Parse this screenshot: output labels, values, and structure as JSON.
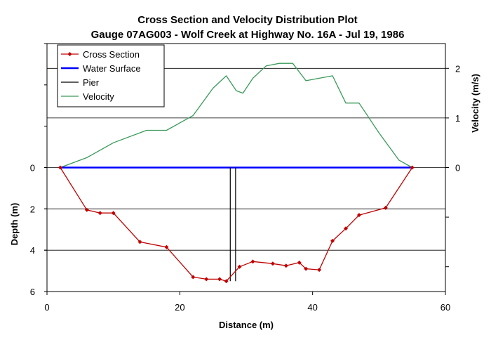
{
  "chart_data": {
    "type": "line",
    "title": "Cross Section and Velocity Distribution Plot",
    "subtitle": "Gauge 07AG003 - Wolf Creek at Highway No. 16A - Jul 19, 1986",
    "xlabel": "Distance (m)",
    "ylabel": "Depth (m)",
    "y2label": "Velocity (m/s)",
    "xlim": [
      0,
      60
    ],
    "ylim_depth": [
      6,
      -6
    ],
    "ylim_velocity": [
      -2.5,
      2.5
    ],
    "x_ticks": [
      "0",
      "20",
      "40",
      "60"
    ],
    "depth_ticks": [
      "0",
      "2",
      "4",
      "6"
    ],
    "velocity_ticks": [
      "0",
      "1",
      "2"
    ],
    "grid": true,
    "legend_position": "top-left",
    "series": [
      {
        "name": "Cross Section",
        "axis": "depth",
        "color": "#c00000",
        "marker": "diamond",
        "x": [
          2,
          6,
          8,
          10,
          14,
          18,
          22,
          24,
          26,
          27,
          29,
          31,
          34,
          36,
          38,
          39,
          41,
          43,
          45,
          47,
          51,
          55
        ],
        "y": [
          0,
          2.05,
          2.2,
          2.2,
          3.6,
          3.85,
          5.3,
          5.4,
          5.4,
          5.5,
          4.8,
          4.55,
          4.65,
          4.75,
          4.6,
          4.9,
          4.95,
          3.55,
          2.95,
          2.3,
          1.95,
          0
        ]
      },
      {
        "name": "Water Surface",
        "axis": "depth",
        "color": "#0000ff",
        "x": [
          2,
          55
        ],
        "y": [
          0,
          0
        ]
      },
      {
        "name": "Pier",
        "axis": "depth",
        "color": "#000000",
        "x": [
          27.6,
          27.6,
          28.4,
          28.4
        ],
        "y": [
          5.5,
          0,
          0,
          5.5
        ]
      },
      {
        "name": "Velocity",
        "axis": "velocity",
        "color": "#3a9a5a",
        "x": [
          2,
          6,
          10,
          15,
          18,
          22,
          25,
          27,
          28.5,
          29.5,
          31,
          33,
          35,
          37,
          39,
          41,
          43,
          45,
          47,
          50,
          53,
          55
        ],
        "y": [
          0,
          0.2,
          0.5,
          0.75,
          0.75,
          1.05,
          1.6,
          1.85,
          1.55,
          1.5,
          1.8,
          2.05,
          2.1,
          2.1,
          1.75,
          1.8,
          1.85,
          1.3,
          1.3,
          0.7,
          0.15,
          0
        ]
      }
    ]
  }
}
